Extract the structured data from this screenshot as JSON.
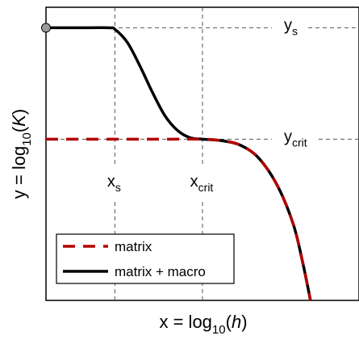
{
  "chart_data": {
    "type": "line",
    "title": "",
    "xlabel": {
      "prefix": "x = log",
      "sub": "10",
      "open": "(",
      "var": "h",
      "close": ")"
    },
    "ylabel": {
      "prefix": "y = log",
      "sub": "10",
      "open": "(",
      "var": "K",
      "close": ")"
    },
    "xlim": [
      0,
      10
    ],
    "ylim": [
      0,
      10
    ],
    "grid": false,
    "legend_position": "bottom-left",
    "reference_lines": {
      "horizontal": [
        {
          "y": 9.3,
          "label_main": "y",
          "label_sub": "s"
        },
        {
          "y": 5.5,
          "label_main": "y",
          "label_sub": "crit"
        }
      ],
      "vertical": [
        {
          "x": 2.2,
          "label_main": "x",
          "label_sub": "s"
        },
        {
          "x": 5.0,
          "label_main": "x",
          "label_sub": "crit"
        }
      ]
    },
    "marker": {
      "x": 0,
      "y": 9.3
    },
    "series": [
      {
        "name": "matrix",
        "color": "#b30000",
        "style": "dashed",
        "x": [
          0,
          1,
          2,
          3,
          4,
          5,
          5.6,
          6.2,
          6.8,
          7.4,
          7.9,
          8.2,
          8.45
        ],
        "y": [
          5.5,
          5.5,
          5.5,
          5.5,
          5.5,
          5.5,
          5.45,
          5.3,
          4.85,
          3.9,
          2.6,
          1.3,
          0
        ]
      },
      {
        "name": "matrix + macro",
        "color": "#000000",
        "style": "solid",
        "x": [
          0,
          1,
          2,
          2.2,
          2.6,
          3.0,
          3.4,
          3.8,
          4.2,
          4.6,
          5.0,
          5.6,
          6.2,
          6.8,
          7.4,
          7.9,
          8.2,
          8.45
        ],
        "y": [
          9.3,
          9.3,
          9.3,
          9.25,
          8.8,
          8.0,
          7.1,
          6.3,
          5.8,
          5.55,
          5.5,
          5.45,
          5.3,
          4.85,
          3.9,
          2.6,
          1.3,
          0
        ]
      }
    ]
  }
}
